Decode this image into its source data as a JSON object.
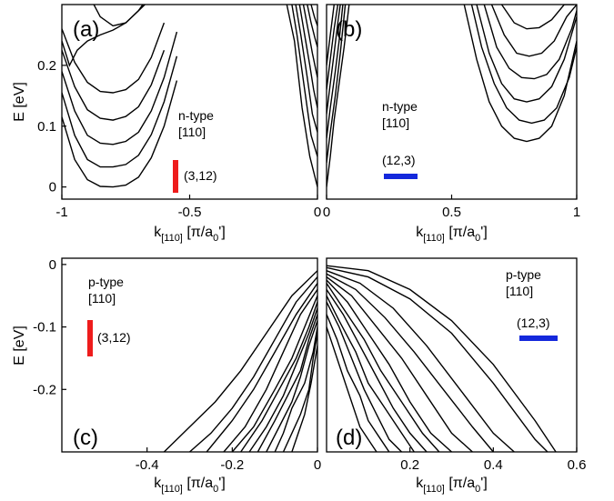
{
  "chart_data": [
    {
      "panel": "(a)",
      "type": "line",
      "xlabel": "k",
      "xlabel_sub": "[110]",
      "xlabel_unit": "[π/a",
      "xlabel_unit_sub": "0",
      "xlabel_unit_end": "']",
      "ylabel": "E [eV]",
      "xlim": [
        -1,
        0
      ],
      "ylim": [
        -0.02,
        0.3
      ],
      "xticks": [
        -1,
        -0.5,
        0
      ],
      "xtick_labels": [
        "-1",
        "-0.5",
        "0"
      ],
      "yticks": [
        0,
        0.1,
        0.2
      ],
      "ytick_labels": [
        "0",
        "0.1",
        "0.2"
      ],
      "note_lines": [
        "n-type",
        "[110]"
      ],
      "marker_label": "(3,12)",
      "marker_color": "#ee1c1c",
      "series": [
        {
          "x": [
            -1,
            -0.95,
            -0.9,
            -0.85,
            -0.8,
            -0.75,
            -0.7,
            -0.65,
            -0.6,
            -0.55
          ],
          "y": [
            0.115,
            0.045,
            0.012,
            0.001,
            0.0,
            0.003,
            0.016,
            0.048,
            0.1,
            0.175
          ]
        },
        {
          "x": [
            -1,
            -0.95,
            -0.9,
            -0.85,
            -0.8,
            -0.75,
            -0.7,
            -0.65,
            -0.6,
            -0.55
          ],
          "y": [
            0.155,
            0.085,
            0.045,
            0.033,
            0.033,
            0.037,
            0.052,
            0.086,
            0.14,
            0.215
          ]
        },
        {
          "x": [
            -1,
            -0.95,
            -0.9,
            -0.85,
            -0.8,
            -0.75,
            -0.7,
            -0.65,
            -0.6,
            -0.55
          ],
          "y": [
            0.19,
            0.125,
            0.085,
            0.072,
            0.07,
            0.075,
            0.09,
            0.125,
            0.18,
            0.255
          ]
        },
        {
          "x": [
            -1,
            -0.95,
            -0.9,
            -0.85,
            -0.8,
            -0.75,
            -0.7,
            -0.65,
            -0.6
          ],
          "y": [
            0.225,
            0.165,
            0.127,
            0.113,
            0.11,
            0.116,
            0.132,
            0.168,
            0.225
          ]
        },
        {
          "x": [
            -1,
            -0.95,
            -0.9,
            -0.85,
            -0.8,
            -0.75,
            -0.7,
            -0.65,
            -0.6
          ],
          "y": [
            0.26,
            0.205,
            0.172,
            0.157,
            0.155,
            0.16,
            0.177,
            0.213,
            0.27
          ]
        },
        {
          "x": [
            -1,
            -0.97,
            -0.94,
            -0.9,
            -0.85,
            -0.8,
            -0.75,
            -0.7,
            -0.65
          ],
          "y": [
            0.24,
            0.2,
            0.225,
            0.24,
            0.25,
            0.258,
            0.27,
            0.29,
            0.31
          ]
        },
        {
          "x": [
            -0.9,
            -0.85,
            -0.8,
            -0.75,
            -0.7,
            -0.65
          ],
          "y": [
            0.32,
            0.28,
            0.265,
            0.27,
            0.29,
            0.32
          ]
        },
        {
          "x": [
            -0.12,
            -0.09,
            -0.06,
            -0.03,
            0.0
          ],
          "y": [
            0.3,
            0.24,
            0.13,
            0.05,
            0.0
          ]
        },
        {
          "x": [
            -0.1,
            -0.08,
            -0.05,
            -0.025,
            0.0
          ],
          "y": [
            0.3,
            0.25,
            0.16,
            0.085,
            0.05
          ]
        },
        {
          "x": [
            -0.085,
            -0.065,
            -0.04,
            -0.02,
            0.0
          ],
          "y": [
            0.3,
            0.25,
            0.18,
            0.12,
            0.09
          ]
        },
        {
          "x": [
            -0.07,
            -0.05,
            -0.03,
            -0.015,
            0.0
          ],
          "y": [
            0.3,
            0.25,
            0.2,
            0.16,
            0.13
          ]
        },
        {
          "x": [
            -0.055,
            -0.035,
            -0.02,
            0.0
          ],
          "y": [
            0.3,
            0.255,
            0.22,
            0.18
          ]
        },
        {
          "x": [
            -0.04,
            -0.025,
            -0.01,
            0.0
          ],
          "y": [
            0.3,
            0.27,
            0.245,
            0.23
          ]
        },
        {
          "x": [
            -0.025,
            -0.012,
            0.0
          ],
          "y": [
            0.3,
            0.28,
            0.265
          ]
        }
      ]
    },
    {
      "panel": "(b)",
      "type": "line",
      "xlabel": "k",
      "xlabel_sub": "[110]",
      "xlabel_unit": "[π/a",
      "xlabel_unit_sub": "0",
      "xlabel_unit_end": "']",
      "ylabel": "",
      "xlim": [
        0,
        1
      ],
      "ylim": [
        -0.02,
        0.3
      ],
      "xticks": [
        0,
        0.5,
        1
      ],
      "xtick_labels": [
        "0",
        "0.5",
        "1"
      ],
      "yticks": [],
      "ytick_labels": [],
      "note_lines": [
        "n-type",
        "[110]"
      ],
      "marker_label": "(12,3)",
      "marker_color": "#1428dc",
      "series": [
        {
          "x": [
            0,
            0.015,
            0.03,
            0.05,
            0.07,
            0.09
          ],
          "y": [
            0.0,
            0.05,
            0.11,
            0.17,
            0.23,
            0.3
          ]
        },
        {
          "x": [
            0,
            0.015,
            0.035,
            0.055,
            0.075
          ],
          "y": [
            0.04,
            0.09,
            0.15,
            0.22,
            0.3
          ]
        },
        {
          "x": [
            0,
            0.015,
            0.035,
            0.05,
            0.065
          ],
          "y": [
            0.08,
            0.13,
            0.19,
            0.24,
            0.3
          ]
        },
        {
          "x": [
            0,
            0.015,
            0.03,
            0.045,
            0.055
          ],
          "y": [
            0.12,
            0.17,
            0.22,
            0.27,
            0.3
          ]
        },
        {
          "x": [
            0,
            0.015,
            0.03,
            0.045
          ],
          "y": [
            0.16,
            0.21,
            0.26,
            0.3
          ]
        },
        {
          "x": [
            0,
            0.015,
            0.03
          ],
          "y": [
            0.2,
            0.25,
            0.3
          ]
        },
        {
          "x": [
            0.55,
            0.6,
            0.65,
            0.7,
            0.75,
            0.8,
            0.85,
            0.9,
            0.95,
            1.0
          ],
          "y": [
            0.3,
            0.21,
            0.14,
            0.1,
            0.08,
            0.075,
            0.08,
            0.1,
            0.15,
            0.24
          ]
        },
        {
          "x": [
            0.58,
            0.62,
            0.67,
            0.72,
            0.77,
            0.82,
            0.87,
            0.92,
            0.97,
            1.0
          ],
          "y": [
            0.3,
            0.23,
            0.17,
            0.13,
            0.11,
            0.105,
            0.11,
            0.13,
            0.18,
            0.23
          ]
        },
        {
          "x": [
            0.6,
            0.65,
            0.7,
            0.75,
            0.8,
            0.85,
            0.9,
            0.95,
            1.0
          ],
          "y": [
            0.3,
            0.22,
            0.17,
            0.145,
            0.14,
            0.145,
            0.165,
            0.21,
            0.28
          ]
        },
        {
          "x": [
            0.63,
            0.68,
            0.73,
            0.78,
            0.83,
            0.88,
            0.93,
            0.98,
            1.0
          ],
          "y": [
            0.3,
            0.23,
            0.195,
            0.18,
            0.178,
            0.185,
            0.21,
            0.26,
            0.29
          ]
        },
        {
          "x": [
            0.66,
            0.71,
            0.76,
            0.81,
            0.86,
            0.91,
            0.96,
            1.0
          ],
          "y": [
            0.3,
            0.25,
            0.22,
            0.215,
            0.22,
            0.24,
            0.28,
            0.3
          ]
        },
        {
          "x": [
            0.7,
            0.75,
            0.8,
            0.85,
            0.9,
            0.95,
            0.99
          ],
          "y": [
            0.3,
            0.27,
            0.26,
            0.262,
            0.275,
            0.3,
            0.3
          ]
        }
      ]
    },
    {
      "panel": "(c)",
      "type": "line",
      "xlabel": "k",
      "xlabel_sub": "[110]",
      "xlabel_unit": "[π/a",
      "xlabel_unit_sub": "0",
      "xlabel_unit_end": "']",
      "ylabel": "E [eV]",
      "xlim": [
        -0.6,
        0
      ],
      "ylim": [
        -0.3,
        0.01
      ],
      "xticks": [
        -0.4,
        -0.2,
        0
      ],
      "xtick_labels": [
        "-0.4",
        "-0.2",
        "0"
      ],
      "yticks": [
        0,
        -0.1,
        -0.2
      ],
      "ytick_labels": [
        "0",
        "-0.1",
        "-0.2"
      ],
      "note_lines": [
        "p-type",
        "[110]"
      ],
      "marker_label": "(3,12)",
      "marker_color": "#ee1c1c",
      "series": [
        {
          "x": [
            -0.36,
            -0.3,
            -0.24,
            -0.18,
            -0.12,
            -0.06,
            0.0
          ],
          "y": [
            -0.3,
            -0.26,
            -0.22,
            -0.17,
            -0.11,
            -0.05,
            -0.01
          ]
        },
        {
          "x": [
            -0.3,
            -0.25,
            -0.2,
            -0.15,
            -0.1,
            -0.05,
            0.0
          ],
          "y": [
            -0.3,
            -0.27,
            -0.23,
            -0.18,
            -0.12,
            -0.06,
            -0.02
          ]
        },
        {
          "x": [
            -0.26,
            -0.2,
            -0.15,
            -0.1,
            -0.05,
            0.0
          ],
          "y": [
            -0.3,
            -0.25,
            -0.2,
            -0.14,
            -0.08,
            -0.03
          ]
        },
        {
          "x": [
            -0.22,
            -0.17,
            -0.12,
            -0.08,
            -0.04,
            0.0
          ],
          "y": [
            -0.3,
            -0.26,
            -0.2,
            -0.14,
            -0.08,
            -0.04
          ]
        },
        {
          "x": [
            -0.2,
            -0.15,
            -0.1,
            -0.06,
            -0.03,
            0.0
          ],
          "y": [
            -0.3,
            -0.26,
            -0.2,
            -0.15,
            -0.1,
            -0.05
          ]
        },
        {
          "x": [
            -0.18,
            -0.13,
            -0.09,
            -0.05,
            -0.02,
            0.0
          ],
          "y": [
            -0.3,
            -0.25,
            -0.2,
            -0.15,
            -0.1,
            -0.06
          ]
        },
        {
          "x": [
            -0.16,
            -0.12,
            -0.08,
            -0.05,
            -0.02,
            0.0
          ],
          "y": [
            -0.3,
            -0.26,
            -0.21,
            -0.16,
            -0.11,
            -0.07
          ]
        },
        {
          "x": [
            -0.14,
            -0.1,
            -0.07,
            -0.04,
            -0.02,
            0.0
          ],
          "y": [
            -0.3,
            -0.25,
            -0.21,
            -0.17,
            -0.12,
            -0.08
          ]
        },
        {
          "x": [
            -0.12,
            -0.09,
            -0.06,
            -0.04,
            -0.02,
            0.0
          ],
          "y": [
            -0.3,
            -0.26,
            -0.22,
            -0.18,
            -0.13,
            -0.09
          ]
        },
        {
          "x": [
            -0.1,
            -0.08,
            -0.06,
            -0.03,
            -0.01,
            0.0
          ],
          "y": [
            -0.3,
            -0.27,
            -0.23,
            -0.19,
            -0.14,
            -0.1
          ]
        },
        {
          "x": [
            -0.08,
            -0.06,
            -0.04,
            -0.02,
            -0.01,
            0.0
          ],
          "y": [
            -0.3,
            -0.27,
            -0.24,
            -0.2,
            -0.15,
            -0.11
          ]
        },
        {
          "x": [
            -0.06,
            -0.045,
            -0.03,
            -0.015,
            0.0
          ],
          "y": [
            -0.3,
            -0.27,
            -0.24,
            -0.19,
            -0.13
          ]
        }
      ]
    },
    {
      "panel": "(d)",
      "type": "line",
      "xlabel": "k",
      "xlabel_sub": "[110]",
      "xlabel_unit": "[π/a",
      "xlabel_unit_sub": "0",
      "xlabel_unit_end": "']",
      "ylabel": "",
      "xlim": [
        0,
        0.6
      ],
      "ylim": [
        -0.3,
        0.01
      ],
      "xticks": [
        0.2,
        0.4,
        0.6
      ],
      "xtick_labels": [
        "0.2",
        "0.4",
        "0.6"
      ],
      "yticks": [],
      "ytick_labels": [],
      "note_lines": [
        "p-type",
        "[110]"
      ],
      "marker_label": "(12,3)",
      "marker_color": "#1428dc",
      "series": [
        {
          "x": [
            0.0,
            0.1,
            0.2,
            0.3,
            0.4,
            0.5,
            0.55
          ],
          "y": [
            -0.002,
            -0.01,
            -0.04,
            -0.09,
            -0.16,
            -0.25,
            -0.3
          ]
        },
        {
          "x": [
            0.0,
            0.1,
            0.2,
            0.3,
            0.4,
            0.5,
            0.53
          ],
          "y": [
            -0.005,
            -0.02,
            -0.055,
            -0.11,
            -0.19,
            -0.28,
            -0.3
          ]
        },
        {
          "x": [
            0.0,
            0.08,
            0.16,
            0.24,
            0.32,
            0.4,
            0.45
          ],
          "y": [
            -0.01,
            -0.03,
            -0.07,
            -0.13,
            -0.2,
            -0.27,
            -0.3
          ]
        },
        {
          "x": [
            0.0,
            0.07,
            0.14,
            0.21,
            0.28,
            0.35,
            0.4
          ],
          "y": [
            -0.015,
            -0.04,
            -0.085,
            -0.14,
            -0.2,
            -0.26,
            -0.3
          ]
        },
        {
          "x": [
            0.0,
            0.06,
            0.12,
            0.18,
            0.24,
            0.3,
            0.35
          ],
          "y": [
            -0.02,
            -0.05,
            -0.1,
            -0.15,
            -0.21,
            -0.27,
            -0.3
          ]
        },
        {
          "x": [
            0.0,
            0.05,
            0.1,
            0.15,
            0.2,
            0.25,
            0.3
          ],
          "y": [
            -0.025,
            -0.06,
            -0.11,
            -0.16,
            -0.22,
            -0.27,
            -0.3
          ]
        },
        {
          "x": [
            0.0,
            0.04,
            0.09,
            0.13,
            0.18,
            0.23,
            0.27
          ],
          "y": [
            -0.03,
            -0.07,
            -0.12,
            -0.17,
            -0.22,
            -0.27,
            -0.3
          ]
        },
        {
          "x": [
            0.0,
            0.04,
            0.08,
            0.12,
            0.16,
            0.2,
            0.24
          ],
          "y": [
            -0.04,
            -0.08,
            -0.13,
            -0.18,
            -0.23,
            -0.27,
            -0.3
          ]
        },
        {
          "x": [
            0.0,
            0.03,
            0.07,
            0.1,
            0.14,
            0.18,
            0.21
          ],
          "y": [
            -0.05,
            -0.09,
            -0.14,
            -0.19,
            -0.23,
            -0.27,
            -0.3
          ]
        },
        {
          "x": [
            0.0,
            0.03,
            0.06,
            0.09,
            0.12,
            0.15,
            0.18
          ],
          "y": [
            -0.06,
            -0.1,
            -0.15,
            -0.2,
            -0.24,
            -0.28,
            -0.3
          ]
        },
        {
          "x": [
            0.0,
            0.025,
            0.05,
            0.08,
            0.1,
            0.13,
            0.15
          ],
          "y": [
            -0.08,
            -0.12,
            -0.17,
            -0.21,
            -0.25,
            -0.28,
            -0.3
          ]
        },
        {
          "x": [
            0.0,
            0.02,
            0.04,
            0.06,
            0.08,
            0.1,
            0.12
          ],
          "y": [
            -0.1,
            -0.14,
            -0.18,
            -0.22,
            -0.26,
            -0.28,
            -0.3
          ]
        }
      ]
    }
  ]
}
